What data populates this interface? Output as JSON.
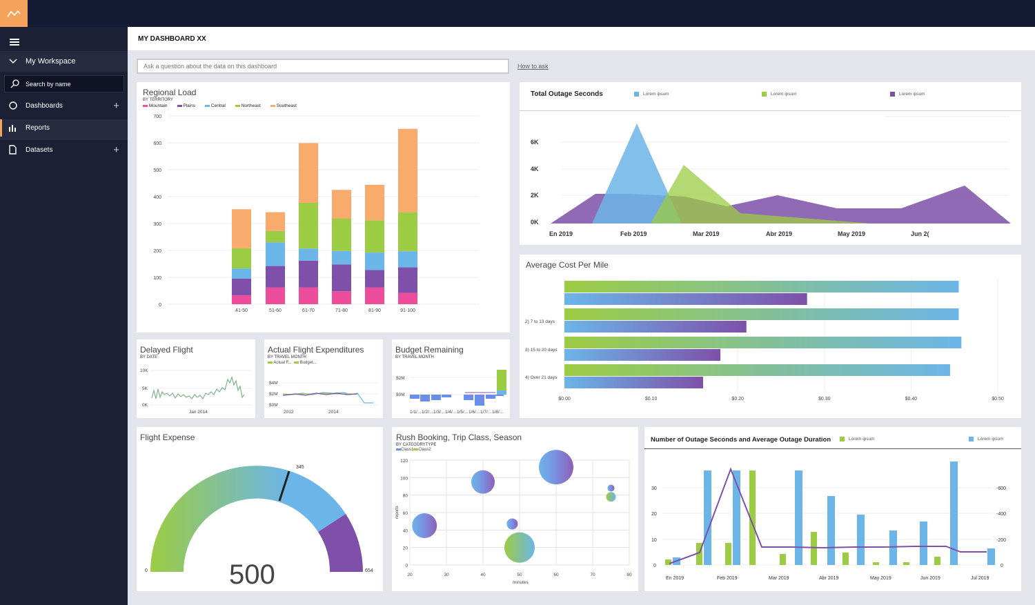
{
  "header": {
    "title": "MY DASHBOARD XX"
  },
  "sidebar": {
    "workspace": "My Workspace",
    "search": "Search by name",
    "items": [
      {
        "label": "Dashboards"
      },
      {
        "label": "Reports"
      },
      {
        "label": "Datasets"
      }
    ]
  },
  "ask": {
    "placeholder": "Ask a question about the data on this dashboard",
    "howto": "How to ask"
  },
  "colors": {
    "mountain": "#ee4d9c",
    "plains": "#7e50a9",
    "central": "#6cb5e8",
    "northeast": "#9ccc43",
    "southeast": "#f9ab6d",
    "accent": "#f5a35c",
    "nav": "#1b2035"
  },
  "regional": {
    "title": "Regional Load",
    "subtitle": "BY TERRITORY",
    "chart_data": {
      "type": "bar",
      "stacked": true,
      "categories": [
        "41-50",
        "51-60",
        "61-70",
        "71-80",
        "81-90",
        "91-100"
      ],
      "yticks": [
        "700",
        "600",
        "500",
        "400",
        "300",
        "200",
        "100",
        "0"
      ],
      "ylim": [
        0,
        700
      ],
      "series": [
        {
          "name": "Mountain",
          "values": [
            33,
            62,
            62,
            48,
            62,
            42
          ]
        },
        {
          "name": "Plains",
          "values": [
            62,
            80,
            100,
            100,
            65,
            95
          ]
        },
        {
          "name": "Central",
          "values": [
            38,
            88,
            45,
            50,
            65,
            60
          ]
        },
        {
          "name": "Northeast",
          "values": [
            75,
            42,
            170,
            120,
            120,
            145
          ]
        },
        {
          "name": "Southeast",
          "values": [
            145,
            70,
            222,
            107,
            132,
            310
          ]
        }
      ]
    }
  },
  "outage": {
    "title": "Total Outage Seconds",
    "legend": [
      "Lorem ipsum",
      "Lorem ipsum",
      "Lorem ipsum"
    ],
    "chart_data": {
      "type": "area",
      "x": [
        "En 2019",
        "Feb 2019",
        "Mar 2019",
        "Abr 2019",
        "May 2019",
        "Jun 2("
      ],
      "yticks": [
        "6K",
        "4K",
        "2K",
        "0K"
      ]
    }
  },
  "cost": {
    "title": "Average Cost Per Mile",
    "chart_data": {
      "type": "bar",
      "orientation": "horizontal",
      "categories": [
        "",
        "2) 7 to 13 days",
        "3) 15 to 20 days",
        "4) Over 21 days"
      ],
      "xticks": [
        "$0.00",
        "$0.10",
        "$0.20",
        "$0.30",
        "$0.40",
        "$0.50"
      ],
      "xlim": [
        0,
        0.5
      ],
      "series": [
        {
          "values": [
            0.455,
            0.455,
            0.458,
            0.445
          ]
        },
        {
          "values": [
            0.28,
            0.21,
            0.18,
            0.16
          ]
        }
      ]
    }
  },
  "delayed": {
    "title": "Delayed Flight",
    "subtitle": "BY DATE",
    "yticks": [
      "10K",
      "5K",
      "0K"
    ],
    "xlabel": "Jan 2014"
  },
  "actual": {
    "title": "Actual Flight Expenditures",
    "subtitle": "BY TRAVEL MONTH",
    "legend": [
      "Actual F...",
      "Budget..."
    ],
    "yticks": [
      "$4M",
      "$2M",
      "$0M"
    ],
    "xticks": [
      "2012",
      "2014"
    ]
  },
  "budget": {
    "title": "Budget Remaining",
    "subtitle": "BY TRAVEL MONTH",
    "yticks": [
      "$2M",
      "$0M"
    ],
    "xticks": [
      "1/1/...",
      "1/2/...",
      "1/3/...",
      "1/4/...",
      "1/5/...",
      "1/6/...",
      "1/7/...",
      "1/8/..."
    ]
  },
  "expense": {
    "title": "Flight Expense",
    "value": "500",
    "marker": "345",
    "min": "0",
    "max": "654"
  },
  "rush": {
    "title": "Rush Booking, Trip Class, Season",
    "subtitle": "BY CATEGORYTYPE",
    "legend": [
      "Class1",
      "Class2"
    ],
    "ylabel": "reports",
    "xlabel": "minutes",
    "chart_data": {
      "type": "scatter",
      "xticks": [
        "20",
        "30",
        "40",
        "50",
        "60",
        "70",
        "80"
      ],
      "yticks": [
        "120",
        "100",
        "80",
        "60",
        "40",
        "20",
        "0"
      ],
      "xlim": [
        20,
        80
      ],
      "ylim": [
        0,
        120
      ],
      "points": [
        {
          "x": 40,
          "y": 95,
          "size": 17
        },
        {
          "x": 60,
          "y": 112,
          "size": 25
        },
        {
          "x": 24,
          "y": 45,
          "size": 18
        },
        {
          "x": 48,
          "y": 47,
          "size": 8
        },
        {
          "x": 50,
          "y": 20,
          "size": 22
        },
        {
          "x": 75,
          "y": 88,
          "size": 5
        },
        {
          "x": 75,
          "y": 78,
          "size": 7
        }
      ]
    }
  },
  "duration": {
    "title": "Number of Outage Seconds and Average Outage Duration",
    "legend": [
      "Lorem ipsum",
      "Lorem ipsum"
    ],
    "chart_data": {
      "type": "bar",
      "x": [
        "En 2019",
        "Feb 2019",
        "Mar 2019",
        "Abr 2019",
        "May 2019",
        "Jun 2019",
        "Jul 2019"
      ],
      "yticks": [
        "30",
        "20",
        "10",
        "0"
      ],
      "y2ticks": [
        "-600",
        "-400",
        "-200",
        "0"
      ]
    }
  }
}
